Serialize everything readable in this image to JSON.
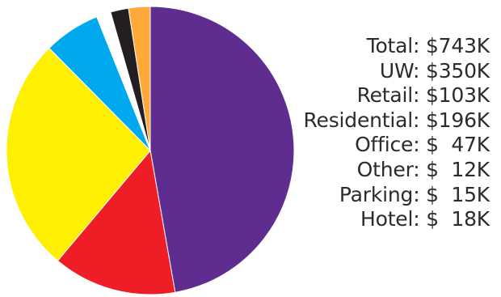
{
  "chart_data": {
    "type": "pie",
    "title": "",
    "total_label": "Total: $743K",
    "legend": [
      "Total: $743K",
      "UW: $350K",
      "Retail: $103K",
      "Residential: $196K",
      "Office: $  47K",
      "Other: $  12K",
      "Parking: $  15K",
      "Hotel: $  18K"
    ],
    "slices": [
      {
        "name": "UW",
        "value": 350,
        "color": "#5f2c8f"
      },
      {
        "name": "Retail",
        "value": 103,
        "color": "#ee1d26"
      },
      {
        "name": "Residential",
        "value": 196,
        "color": "#ffef00"
      },
      {
        "name": "Office",
        "value": 47,
        "color": "#00a9ee"
      },
      {
        "name": "Other",
        "value": 12,
        "color": "#ffffff"
      },
      {
        "name": "Parking",
        "value": 15,
        "color": "#231f20"
      },
      {
        "name": "Hotel",
        "value": 18,
        "color": "#ffa93a"
      }
    ]
  }
}
